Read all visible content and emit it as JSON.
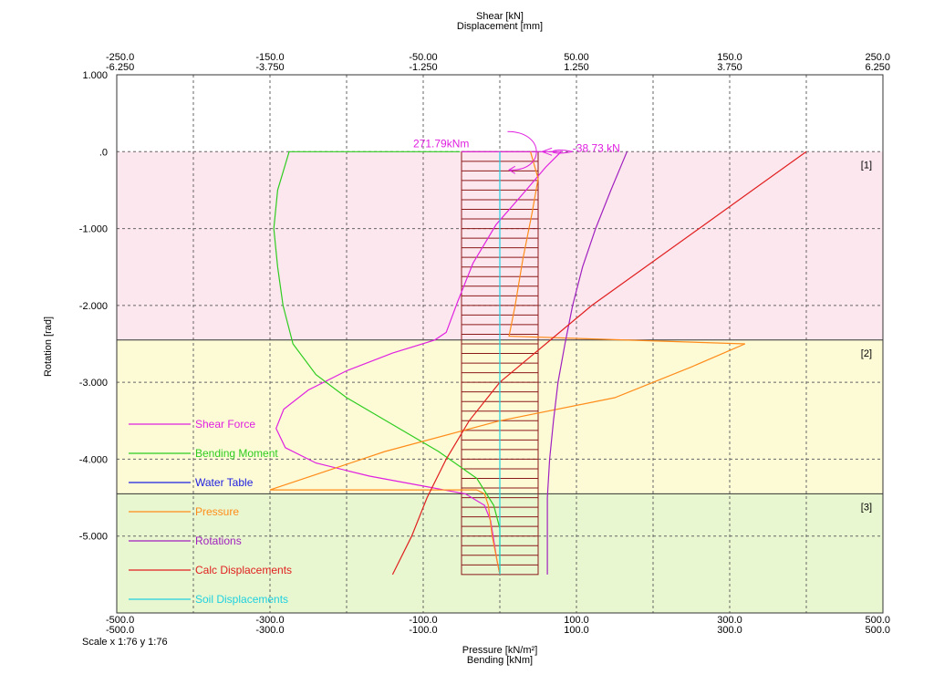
{
  "chart_data": {
    "type": "line",
    "top_axis": {
      "title_line1": "Shear [kN]",
      "title_line2": "Displacement [mm]",
      "ticks": [
        {
          "shear": -250.0,
          "shear_label": "-250.0",
          "disp_label": "-6.250"
        },
        {
          "shear": -150.0,
          "shear_label": "-150.0",
          "disp_label": "-3.750"
        },
        {
          "shear": -50.0,
          "shear_label": "-50.00",
          "disp_label": "-1.250"
        },
        {
          "shear": 50.0,
          "shear_label": "50.00",
          "disp_label": "1.250"
        },
        {
          "shear": 150.0,
          "shear_label": "150.0",
          "disp_label": "3.750"
        },
        {
          "shear": 250.0,
          "shear_label": "250.0",
          "disp_label": "6.250"
        }
      ],
      "shear_range": [
        -250,
        250
      ],
      "displacement_range": [
        -6.25,
        6.25
      ]
    },
    "bottom_axis": {
      "title_line1": "Pressure [kN/m²]",
      "title_line2": "Bending [kNm]",
      "ticks": [
        {
          "value": -500.0,
          "pressure_label": "-500.0",
          "bending_label": "-500.0"
        },
        {
          "value": -300.0,
          "pressure_label": "-300.0",
          "bending_label": "-300.0"
        },
        {
          "value": -100.0,
          "pressure_label": "-100.0",
          "bending_label": "-100.0"
        },
        {
          "value": 100.0,
          "pressure_label": "100.0",
          "bending_label": "100.0"
        },
        {
          "value": 300.0,
          "pressure_label": "300.0",
          "bending_label": "300.0"
        },
        {
          "value": 500.0,
          "pressure_label": "500.0",
          "bending_label": "500.0"
        }
      ],
      "range": [
        -500,
        500
      ]
    },
    "left_axis": {
      "title": "Rotation [rad]",
      "ticks": [
        {
          "value": 1.0,
          "label": "1.000"
        },
        {
          "value": 0.0,
          "label": ".0"
        },
        {
          "value": -1.0,
          "label": "-1.000"
        },
        {
          "value": -2.0,
          "label": "-2.000"
        },
        {
          "value": -3.0,
          "label": "-3.000"
        },
        {
          "value": -4.0,
          "label": "-4.000"
        },
        {
          "value": -5.0,
          "label": "-5.000"
        }
      ],
      "range": [
        -6.0,
        1.0
      ]
    },
    "scale_label": "Scale x 1:76  y 1:76",
    "grid": true,
    "soil_layers": [
      {
        "label": "[1]",
        "top": 0.0,
        "bottom": -2.45,
        "color": "#fde7ee"
      },
      {
        "label": "[2]",
        "top": -2.45,
        "bottom": -4.45,
        "color": "#fdfbd6"
      },
      {
        "label": "[3]",
        "top": -4.45,
        "bottom": -6.0,
        "color": "#e8f7cf"
      }
    ],
    "wall": {
      "left": -50,
      "right": 50,
      "bottom": -5.5,
      "hatch_spacing": 0.125,
      "color": "#8b1a1a"
    },
    "annotations": {
      "moment_label": "271.79kNm",
      "shear_label": "-38.73 kN",
      "color": "#e020e0"
    },
    "series": [
      {
        "name": "Shear Force",
        "color": "#e020e0",
        "axis": "bottom",
        "points": [
          [
            -50,
            0.0
          ],
          [
            80,
            0.0
          ],
          [
            60,
            -0.2
          ],
          [
            30,
            -0.55
          ],
          [
            -5,
            -0.95
          ],
          [
            -35,
            -1.45
          ],
          [
            -55,
            -1.95
          ],
          [
            -70,
            -2.35
          ],
          [
            -85,
            -2.45
          ],
          [
            -140,
            -2.62
          ],
          [
            -200,
            -2.85
          ],
          [
            -250,
            -3.1
          ],
          [
            -282,
            -3.35
          ],
          [
            -292,
            -3.6
          ],
          [
            -280,
            -3.85
          ],
          [
            -240,
            -4.05
          ],
          [
            -170,
            -4.22
          ],
          [
            -100,
            -4.35
          ],
          [
            -45,
            -4.45
          ],
          [
            -20,
            -4.6
          ],
          [
            -12,
            -4.8
          ],
          [
            -8,
            -5.05
          ],
          [
            -4,
            -5.3
          ],
          [
            0,
            -5.5
          ]
        ]
      },
      {
        "name": "Bending Moment",
        "color": "#2ecc20",
        "axis": "bottom",
        "points": [
          [
            -52,
            0.0
          ],
          [
            -275,
            0.0
          ],
          [
            -290,
            -0.5
          ],
          [
            -295,
            -1.0
          ],
          [
            -290,
            -1.5
          ],
          [
            -283,
            -2.0
          ],
          [
            -270,
            -2.5
          ],
          [
            -240,
            -2.9
          ],
          [
            -200,
            -3.2
          ],
          [
            -140,
            -3.55
          ],
          [
            -80,
            -3.9
          ],
          [
            -30,
            -4.25
          ],
          [
            -8,
            -4.6
          ],
          [
            0,
            -4.9
          ],
          [
            0,
            -5.25
          ],
          [
            0,
            -5.5
          ]
        ]
      },
      {
        "name": "Water Table",
        "color": "#2020e0",
        "axis": "bottom",
        "points": []
      },
      {
        "name": "Pressure",
        "color": "#ff8c1a",
        "axis": "bottom",
        "points": [
          [
            40,
            0.0
          ],
          [
            50,
            -0.35
          ],
          [
            42,
            -0.8
          ],
          [
            30,
            -1.4
          ],
          [
            20,
            -2.0
          ],
          [
            12,
            -2.4
          ],
          [
            320,
            -2.5
          ],
          [
            250,
            -2.8
          ],
          [
            150,
            -3.2
          ],
          [
            0,
            -3.5
          ],
          [
            -150,
            -3.9
          ],
          [
            -300,
            -4.4
          ],
          [
            -30,
            -4.4
          ],
          [
            -20,
            -4.45
          ],
          [
            -15,
            -4.6
          ],
          [
            -10,
            -5.0
          ],
          [
            0,
            -5.5
          ]
        ]
      },
      {
        "name": "Rotations",
        "color": "#a020c0",
        "axis": "bottom",
        "points": [
          [
            166,
            0.0
          ],
          [
            145,
            -0.5
          ],
          [
            125,
            -1.0
          ],
          [
            108,
            -1.5
          ],
          [
            95,
            -2.0
          ],
          [
            85,
            -2.5
          ],
          [
            76,
            -3.0
          ],
          [
            70,
            -3.5
          ],
          [
            65,
            -4.0
          ],
          [
            62,
            -4.5
          ],
          [
            62,
            -5.0
          ],
          [
            62,
            -5.5
          ]
        ]
      },
      {
        "name": "Calc Displacements",
        "color": "#e02020",
        "axis": "bottom",
        "points": [
          [
            400,
            0.0
          ],
          [
            330,
            -0.5
          ],
          [
            260,
            -1.0
          ],
          [
            190,
            -1.5
          ],
          [
            120,
            -2.0
          ],
          [
            60,
            -2.5
          ],
          [
            0,
            -3.0
          ],
          [
            -40,
            -3.5
          ],
          [
            -70,
            -4.0
          ],
          [
            -95,
            -4.5
          ],
          [
            -115,
            -5.0
          ],
          [
            -140,
            -5.5
          ]
        ]
      },
      {
        "name": "Soil Displacements",
        "color": "#20d0e0",
        "axis": "bottom",
        "points": [
          [
            0,
            0.0
          ],
          [
            0,
            -5.5
          ]
        ]
      }
    ]
  }
}
